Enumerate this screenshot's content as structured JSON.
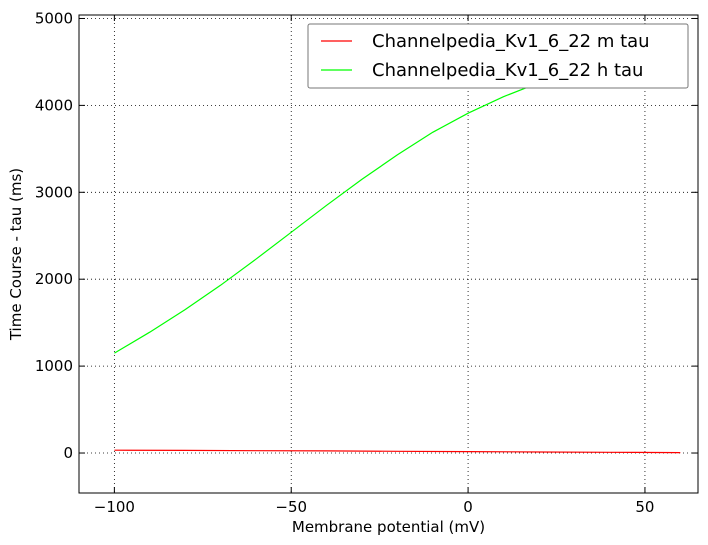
{
  "chart_data": {
    "type": "line",
    "xlabel": "Membrane potential (mV)",
    "ylabel": "Time Course - tau (ms)",
    "xlim": [
      -110,
      65
    ],
    "ylim": [
      -460,
      5040
    ],
    "xticks": [
      -100,
      -50,
      0,
      50
    ],
    "xtick_labels": [
      "−100",
      "−50",
      "0",
      "50"
    ],
    "yticks": [
      0,
      1000,
      2000,
      3000,
      4000,
      5000
    ],
    "ytick_labels": [
      "0",
      "1000",
      "2000",
      "3000",
      "4000",
      "5000"
    ],
    "grid": true,
    "legend_position": "top-right",
    "series": [
      {
        "name": "Channelpedia_Kv1_6_22 m tau",
        "color": "#ff0000",
        "x": [
          -100,
          -80,
          -60,
          -40,
          -20,
          0,
          20,
          40,
          60
        ],
        "y": [
          32,
          30,
          27,
          24,
          20,
          16,
          12,
          8,
          5
        ]
      },
      {
        "name": "Channelpedia_Kv1_6_22 h tau",
        "color": "#00ff00",
        "x": [
          -100,
          -90,
          -80,
          -70,
          -60,
          -50,
          -40,
          -30,
          -20,
          -10,
          0,
          10,
          20,
          30,
          40,
          50,
          60
        ],
        "y": [
          1150,
          1390,
          1650,
          1930,
          2230,
          2540,
          2850,
          3150,
          3430,
          3690,
          3910,
          4100,
          4260,
          4390,
          4480,
          4550,
          4600
        ]
      }
    ]
  }
}
